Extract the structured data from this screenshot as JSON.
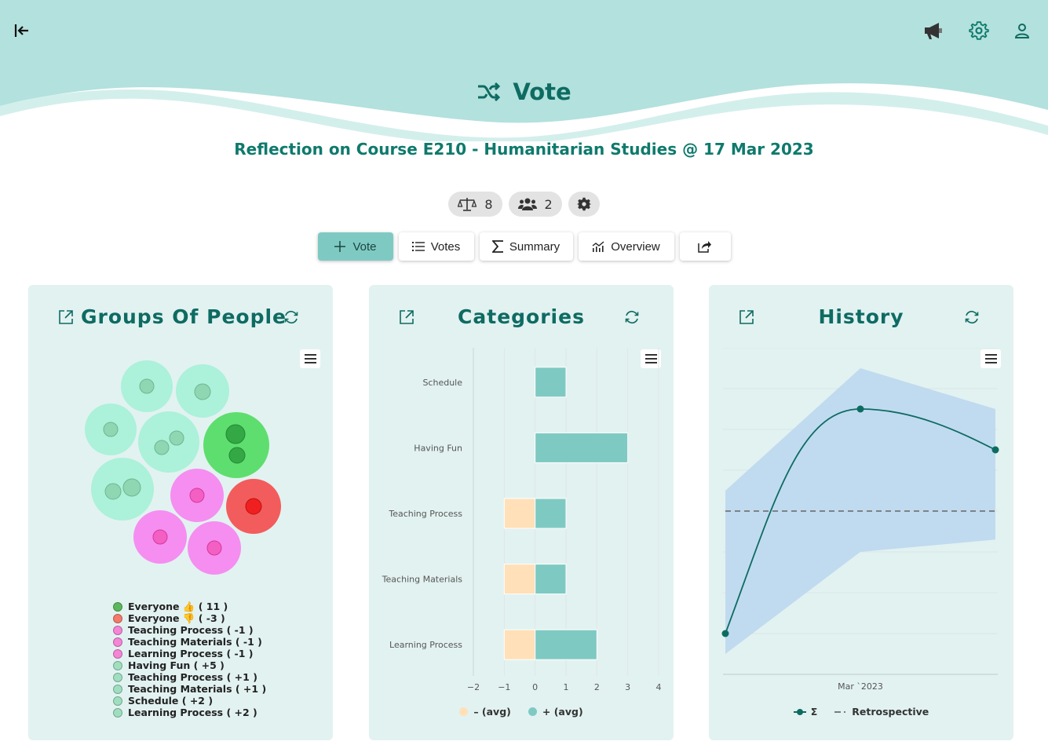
{
  "header": {
    "title": "Vote",
    "subtitle": "Reflection on Course E210 - Humanitarian Studies @ 17 Mar 2023",
    "icons": [
      "collapse-left-icon",
      "megaphone-icon",
      "gear-icon",
      "user-icon"
    ]
  },
  "stats": {
    "votes_count": "8",
    "participants_count": "2"
  },
  "tabs": [
    {
      "label": "Vote",
      "icon": "plus-icon"
    },
    {
      "label": "Votes",
      "icon": "list-icon"
    },
    {
      "label": "Summary",
      "icon": "sigma-icon"
    },
    {
      "label": "Overview",
      "icon": "chart-icon"
    },
    {
      "label": "",
      "icon": "share-icon"
    }
  ],
  "colors": {
    "teal": "#0e6b62",
    "accent": "#7ecac3",
    "card_bg": "#e2f2f1",
    "negative": "#ffe0b8",
    "positive": "#7ecac3"
  },
  "groups_card": {
    "title": "Groups Of People",
    "legend": [
      {
        "label": "Everyone 👍 ( 11 )",
        "color": "#5cb85c"
      },
      {
        "label": "Everyone 👎 ( -3 )",
        "color": "#f47a6b"
      },
      {
        "label": "Teaching Process ( -1 )",
        "color": "#f585d6"
      },
      {
        "label": "Teaching Materials ( -1 )",
        "color": "#f585d6"
      },
      {
        "label": "Learning Process ( -1 )",
        "color": "#f585d6"
      },
      {
        "label": "Having Fun ( +5 )",
        "color": "#9fdfc0"
      },
      {
        "label": "Teaching Process ( +1 )",
        "color": "#9fdfc0"
      },
      {
        "label": "Teaching Materials ( +1 )",
        "color": "#9fdfc0"
      },
      {
        "label": "Schedule ( +2 )",
        "color": "#9fdfc0"
      },
      {
        "label": "Learning Process ( +2 )",
        "color": "#9fdfc0"
      }
    ]
  },
  "categories_card": {
    "title": "Categories",
    "legend_neg": "– (avg)",
    "legend_pos": "+ (avg)"
  },
  "history_card": {
    "title": "History",
    "x_label": "Mar `2023",
    "legend_sum": "Σ",
    "legend_retro": "Retrospective"
  },
  "chart_data": [
    {
      "type": "bar",
      "orientation": "horizontal",
      "categories": [
        "Schedule",
        "Having Fun",
        "Teaching Process",
        "Teaching Materials",
        "Learning Process"
      ],
      "series": [
        {
          "name": "– (avg)",
          "values": [
            0,
            0,
            -1,
            -1,
            -1
          ]
        },
        {
          "name": "+ (avg)",
          "values": [
            1,
            3,
            1,
            1,
            2
          ]
        }
      ],
      "xlim": [
        -2,
        4
      ],
      "xticks": [
        "−2",
        "−1",
        "0",
        "1",
        "2",
        "3",
        "4"
      ],
      "grid": true,
      "legend": "bottom"
    },
    {
      "type": "line",
      "series": [
        {
          "name": "Σ",
          "values": [
            -2,
            3.5,
            2.5
          ]
        }
      ],
      "band": {
        "lower": [
          -2.5,
          0,
          0.3
        ],
        "upper": [
          1.5,
          4.5,
          3.5
        ]
      },
      "reference": {
        "name": "Retrospective",
        "value": 1
      },
      "x_label": "Mar `2023",
      "legend": "bottom"
    }
  ]
}
